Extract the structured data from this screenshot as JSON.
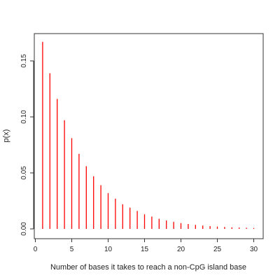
{
  "chart_data": {
    "type": "bar",
    "style": "vertical-lines",
    "title": "",
    "xlabel": "Number of bases it takes to reach a non-CpG island base",
    "ylabel": "p(x)",
    "xlim": [
      0,
      30
    ],
    "ylim": [
      0,
      0.17
    ],
    "x_ticks": [
      0,
      5,
      10,
      15,
      20,
      25,
      30
    ],
    "y_ticks": [
      0.0,
      0.05,
      0.1,
      0.15
    ],
    "y_tick_labels": [
      "0.00",
      "0.05",
      "0.10",
      "0.15"
    ],
    "grid": false,
    "bar_color": "#ff0000",
    "x": [
      1,
      2,
      3,
      4,
      5,
      6,
      7,
      8,
      9,
      10,
      11,
      12,
      13,
      14,
      15,
      16,
      17,
      18,
      19,
      20,
      21,
      22,
      23,
      24,
      25,
      26,
      27,
      28,
      29,
      30
    ],
    "values": [
      0.167,
      0.139,
      0.116,
      0.097,
      0.081,
      0.067,
      0.056,
      0.047,
      0.039,
      0.032,
      0.027,
      0.022,
      0.019,
      0.016,
      0.013,
      0.011,
      0.009,
      0.0075,
      0.0063,
      0.0052,
      0.0044,
      0.0036,
      0.003,
      0.0025,
      0.0021,
      0.0017,
      0.0014,
      0.0012,
      0.001,
      0.0008
    ]
  }
}
